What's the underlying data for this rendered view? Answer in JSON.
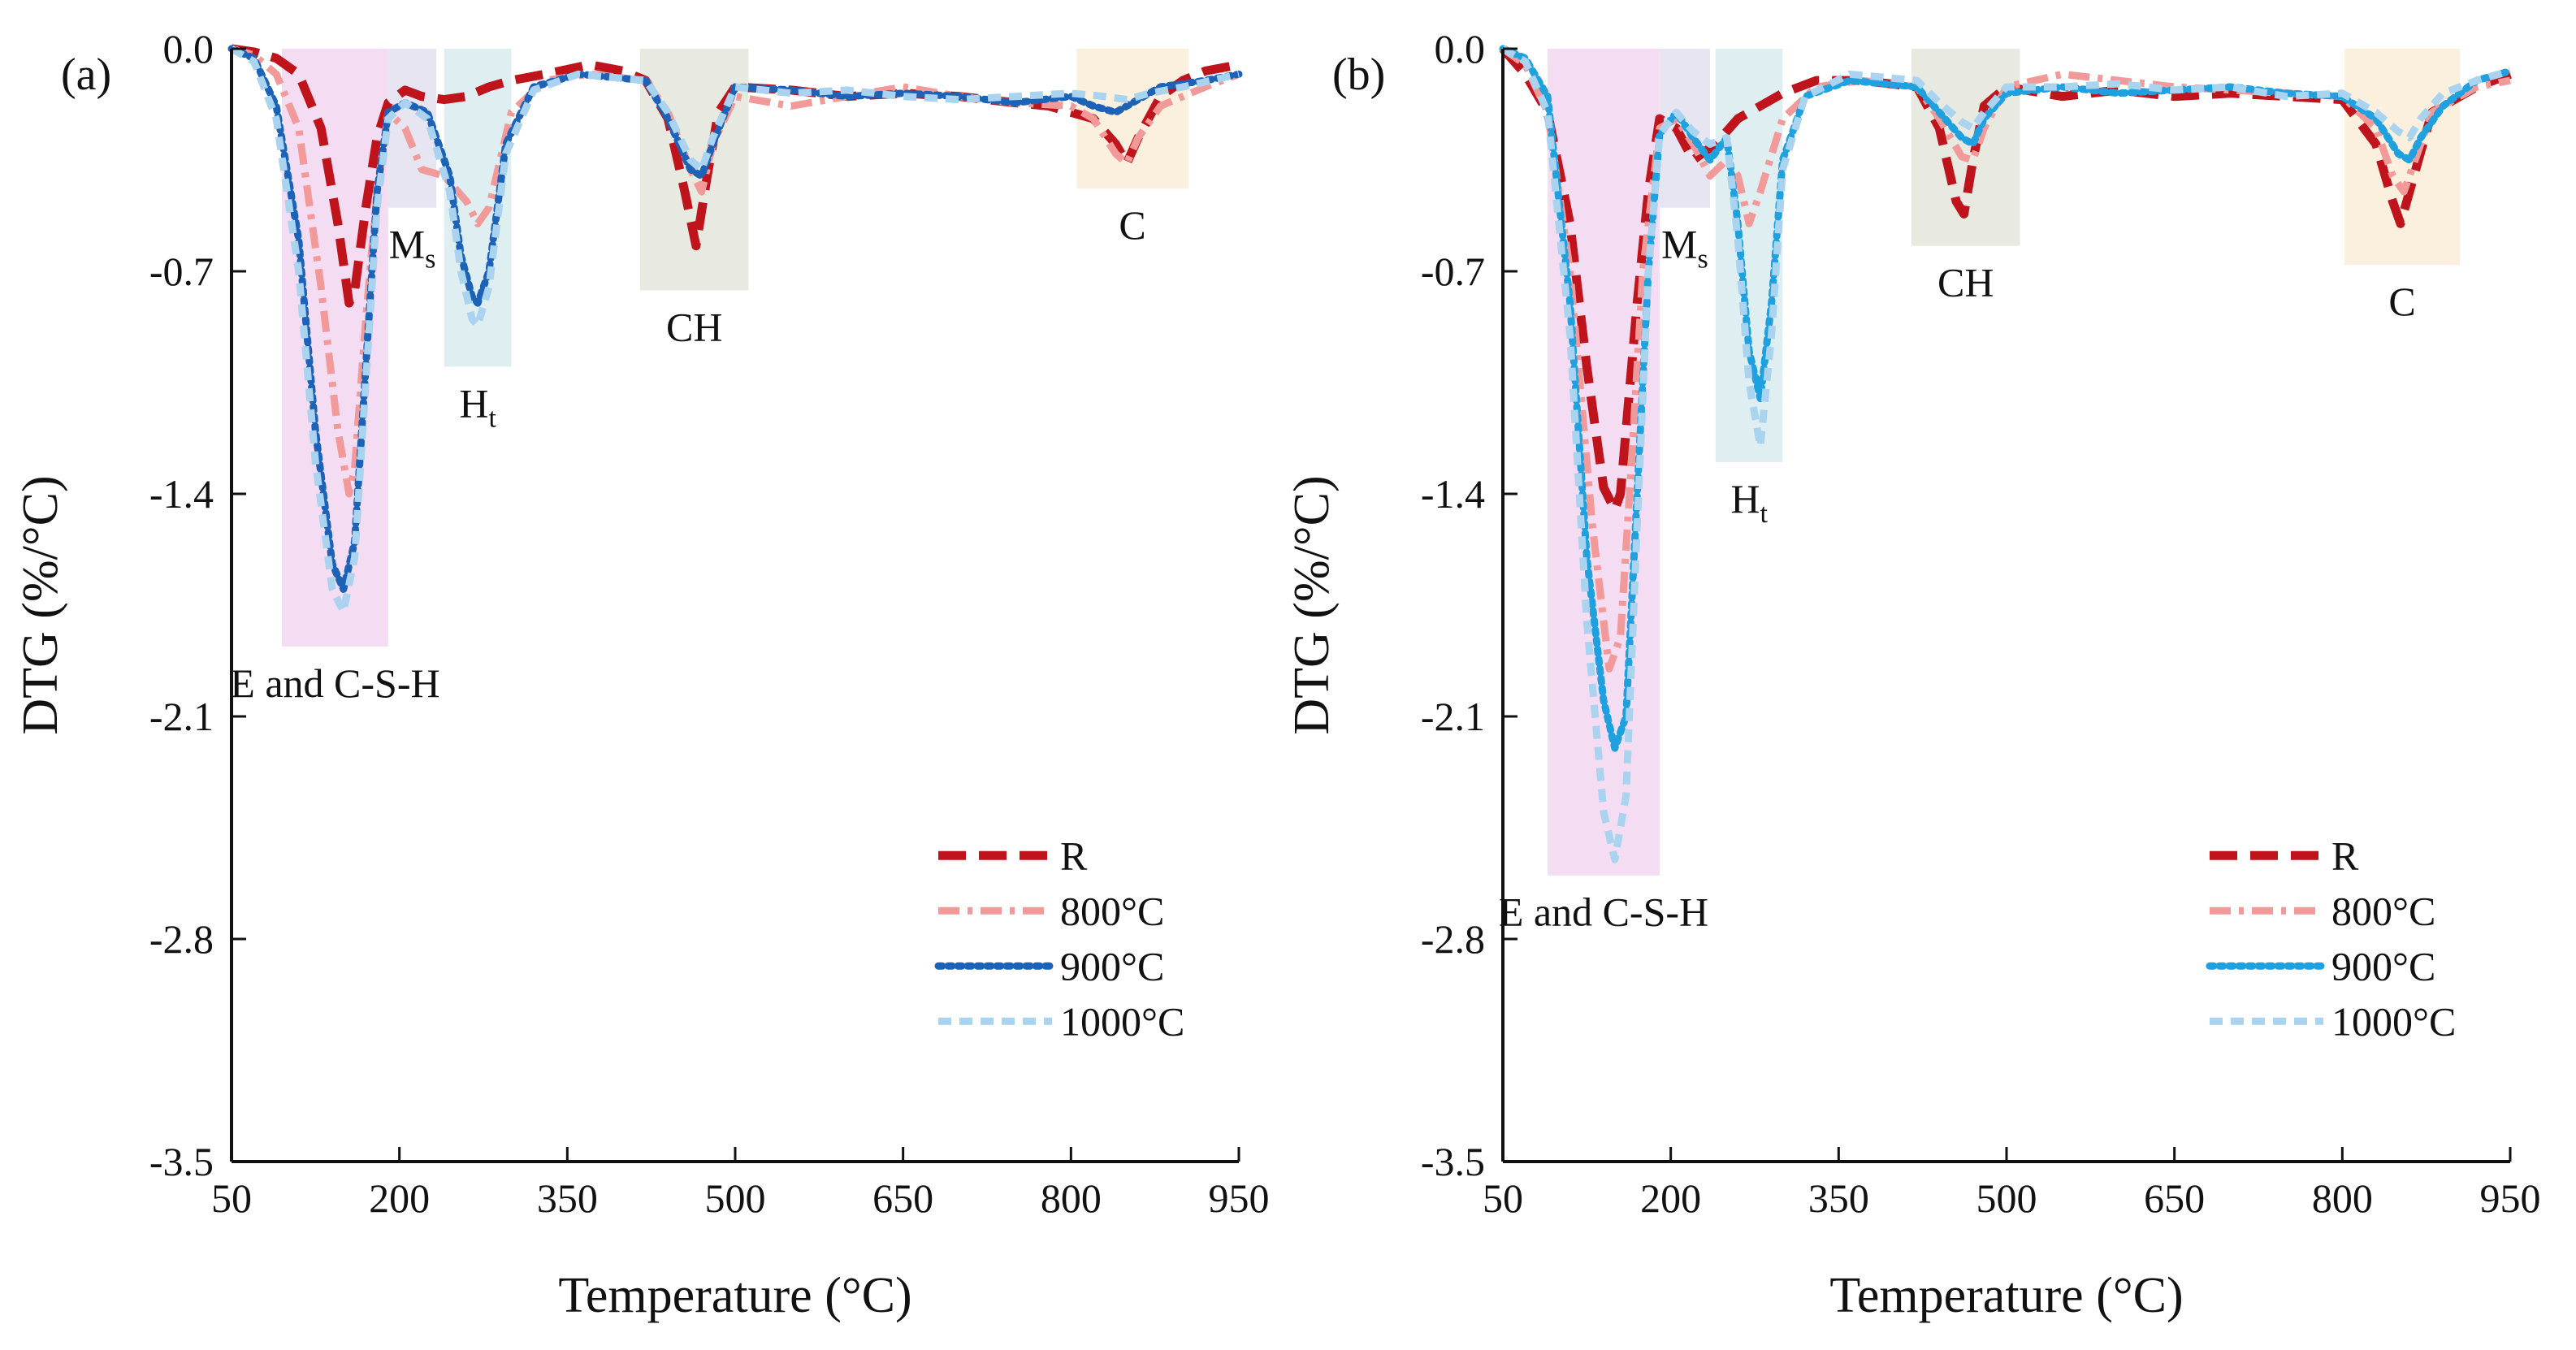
{
  "figure": {
    "colors": {
      "R": "#c0141d",
      "800": "#f29a9a",
      "900_a": "#1c63b8",
      "900_b": "#1fa1e0",
      "1000": "#a9d3ef",
      "band_E": "#f3d9f1",
      "band_Ms": "#e3e2ef",
      "band_Ht": "#dcecef",
      "band_CH": "#e5e8df",
      "band_C": "#fbeeda",
      "axis": "#111111"
    }
  },
  "chart_data": [
    {
      "panel_label": "(a)",
      "type": "line",
      "xlabel": "Temperature (°C)",
      "ylabel": "DTG (%/°C)",
      "xlim": [
        50,
        950
      ],
      "ylim": [
        -3.5,
        0.0
      ],
      "xticks": [
        "50",
        "200",
        "350",
        "500",
        "650",
        "800",
        "950"
      ],
      "yticks": [
        "0.0",
        "-0.7",
        "-1.4",
        "-2.1",
        "-2.8",
        "-3.5"
      ],
      "bands": [
        {
          "label": "E and C-S-H",
          "main": "E and C-S-H",
          "sub": "",
          "x": [
            95,
            190
          ],
          "y": [
            0.0,
            -1.88
          ],
          "color": "band_E",
          "label_anchor": "bottom"
        },
        {
          "label": "Ms",
          "main": "M",
          "sub": "s",
          "x": [
            190,
            233
          ],
          "y": [
            0.0,
            -0.5
          ],
          "color": "band_Ms",
          "label_anchor": "bottom"
        },
        {
          "label": "Ht",
          "main": "H",
          "sub": "t",
          "x": [
            240,
            300
          ],
          "y": [
            0.0,
            -1.0
          ],
          "color": "band_Ht",
          "label_anchor": "bottom"
        },
        {
          "label": "CH",
          "main": "CH",
          "sub": "",
          "x": [
            415,
            512
          ],
          "y": [
            0.0,
            -0.76
          ],
          "color": "band_CH",
          "label_anchor": "bottom"
        },
        {
          "label": "C",
          "main": "C",
          "sub": "",
          "x": [
            805,
            905
          ],
          "y": [
            0.0,
            -0.44
          ],
          "color": "band_C",
          "label_anchor": "bottom"
        }
      ],
      "series": [
        {
          "name": "R",
          "dash": "long",
          "color": "R",
          "x": [
            50,
            70,
            90,
            110,
            130,
            145,
            155,
            160,
            170,
            180,
            190,
            205,
            220,
            240,
            260,
            280,
            300,
            330,
            370,
            400,
            420,
            440,
            455,
            465,
            475,
            485,
            500,
            550,
            600,
            650,
            700,
            750,
            780,
            800,
            820,
            840,
            850,
            860,
            880,
            900,
            920,
            950
          ],
          "y": [
            0,
            -0.01,
            -0.03,
            -0.08,
            -0.25,
            -0.55,
            -0.8,
            -0.76,
            -0.5,
            -0.28,
            -0.17,
            -0.13,
            -0.15,
            -0.16,
            -0.15,
            -0.12,
            -0.1,
            -0.08,
            -0.05,
            -0.07,
            -0.1,
            -0.22,
            -0.45,
            -0.62,
            -0.4,
            -0.2,
            -0.12,
            -0.13,
            -0.15,
            -0.14,
            -0.15,
            -0.17,
            -0.18,
            -0.2,
            -0.22,
            -0.3,
            -0.36,
            -0.28,
            -0.15,
            -0.1,
            -0.07,
            -0.05
          ]
        },
        {
          "name": "800°C",
          "dash": "dashdot",
          "color": "800",
          "x": [
            50,
            70,
            90,
            110,
            130,
            145,
            155,
            160,
            170,
            180,
            190,
            205,
            220,
            240,
            260,
            270,
            280,
            300,
            330,
            370,
            420,
            440,
            460,
            470,
            480,
            500,
            550,
            600,
            650,
            700,
            750,
            800,
            820,
            840,
            850,
            860,
            880,
            920,
            950
          ],
          "y": [
            0,
            -0.02,
            -0.08,
            -0.25,
            -0.75,
            -1.2,
            -1.4,
            -1.32,
            -0.85,
            -0.45,
            -0.2,
            -0.25,
            -0.38,
            -0.4,
            -0.48,
            -0.55,
            -0.5,
            -0.2,
            -0.1,
            -0.08,
            -0.1,
            -0.2,
            -0.38,
            -0.45,
            -0.3,
            -0.15,
            -0.18,
            -0.15,
            -0.12,
            -0.15,
            -0.17,
            -0.18,
            -0.22,
            -0.33,
            -0.36,
            -0.28,
            -0.18,
            -0.12,
            -0.08
          ]
        },
        {
          "name": "900°C",
          "dash": "dot",
          "color": "900_a",
          "x": [
            50,
            70,
            90,
            110,
            125,
            140,
            150,
            160,
            170,
            180,
            190,
            205,
            225,
            245,
            255,
            265,
            270,
            280,
            295,
            320,
            360,
            420,
            440,
            460,
            470,
            480,
            500,
            550,
            600,
            650,
            700,
            750,
            800,
            820,
            840,
            850,
            860,
            880,
            920,
            950
          ],
          "y": [
            0,
            -0.03,
            -0.18,
            -0.6,
            -1.2,
            -1.62,
            -1.7,
            -1.55,
            -1.0,
            -0.45,
            -0.2,
            -0.17,
            -0.2,
            -0.4,
            -0.65,
            -0.78,
            -0.8,
            -0.7,
            -0.3,
            -0.12,
            -0.08,
            -0.1,
            -0.22,
            -0.38,
            -0.4,
            -0.3,
            -0.12,
            -0.13,
            -0.15,
            -0.14,
            -0.15,
            -0.17,
            -0.15,
            -0.18,
            -0.2,
            -0.18,
            -0.16,
            -0.12,
            -0.1,
            -0.08
          ]
        },
        {
          "name": "1000°C",
          "dash": "dash",
          "color": "1000",
          "x": [
            50,
            70,
            90,
            110,
            125,
            140,
            150,
            160,
            170,
            180,
            190,
            205,
            225,
            245,
            255,
            265,
            270,
            280,
            295,
            320,
            360,
            420,
            440,
            460,
            470,
            480,
            500,
            550,
            600,
            650,
            700,
            750,
            800,
            830,
            850,
            870,
            900,
            950
          ],
          "y": [
            0,
            -0.04,
            -0.22,
            -0.7,
            -1.3,
            -1.7,
            -1.77,
            -1.6,
            -1.05,
            -0.5,
            -0.22,
            -0.17,
            -0.22,
            -0.45,
            -0.7,
            -0.85,
            -0.87,
            -0.75,
            -0.33,
            -0.13,
            -0.08,
            -0.1,
            -0.2,
            -0.35,
            -0.38,
            -0.28,
            -0.12,
            -0.14,
            -0.13,
            -0.15,
            -0.16,
            -0.15,
            -0.14,
            -0.15,
            -0.16,
            -0.14,
            -0.12,
            -0.08
          ]
        }
      ],
      "legend": {
        "position": "bottom-right",
        "entries": [
          "R",
          "800°C",
          "900°C",
          "1000°C"
        ]
      }
    },
    {
      "panel_label": "(b)",
      "type": "line",
      "xlabel": "Temperature (°C)",
      "ylabel": "DTG (%/°C)",
      "xlim": [
        50,
        950
      ],
      "ylim": [
        -3.5,
        0.0
      ],
      "xticks": [
        "50",
        "200",
        "350",
        "500",
        "650",
        "800",
        "950"
      ],
      "yticks": [
        "0.0",
        "-0.7",
        "-1.4",
        "-2.1",
        "-2.8",
        "-3.5"
      ],
      "bands": [
        {
          "label": "E and C-S-H",
          "main": "E and C-S-H",
          "sub": "",
          "x": [
            90,
            190
          ],
          "y": [
            0.0,
            -2.6
          ],
          "color": "band_E",
          "label_anchor": "bottom"
        },
        {
          "label": "Ms",
          "main": "M",
          "sub": "s",
          "x": [
            190,
            235
          ],
          "y": [
            0.0,
            -0.5
          ],
          "color": "band_Ms",
          "label_anchor": "bottom"
        },
        {
          "label": "Ht",
          "main": "H",
          "sub": "t",
          "x": [
            240,
            300
          ],
          "y": [
            0.0,
            -1.3
          ],
          "color": "band_Ht",
          "label_anchor": "bottom"
        },
        {
          "label": "CH",
          "main": "CH",
          "sub": "",
          "x": [
            415,
            512
          ],
          "y": [
            0.0,
            -0.62
          ],
          "color": "band_CH",
          "label_anchor": "bottom"
        },
        {
          "label": "C",
          "main": "C",
          "sub": "",
          "x": [
            802,
            905
          ],
          "y": [
            0.0,
            -0.68
          ],
          "color": "band_C",
          "label_anchor": "bottom"
        }
      ],
      "series": [
        {
          "name": "R",
          "dash": "long",
          "color": "R",
          "x": [
            50,
            70,
            90,
            110,
            125,
            140,
            150,
            155,
            160,
            170,
            180,
            190,
            205,
            220,
            240,
            260,
            280,
            300,
            330,
            370,
            420,
            440,
            455,
            462,
            470,
            480,
            500,
            550,
            600,
            650,
            700,
            750,
            800,
            830,
            845,
            852,
            860,
            880,
            920,
            950
          ],
          "y": [
            0,
            -0.08,
            -0.2,
            -0.55,
            -1.0,
            -1.38,
            -1.45,
            -1.4,
            -1.2,
            -0.8,
            -0.45,
            -0.22,
            -0.25,
            -0.35,
            -0.3,
            -0.22,
            -0.18,
            -0.14,
            -0.1,
            -0.1,
            -0.12,
            -0.25,
            -0.48,
            -0.52,
            -0.35,
            -0.18,
            -0.12,
            -0.15,
            -0.13,
            -0.15,
            -0.14,
            -0.15,
            -0.16,
            -0.3,
            -0.48,
            -0.55,
            -0.45,
            -0.2,
            -0.12,
            -0.08
          ]
        },
        {
          "name": "800°C",
          "dash": "dashdot",
          "color": "800",
          "x": [
            50,
            70,
            90,
            110,
            130,
            145,
            155,
            165,
            175,
            190,
            205,
            220,
            235,
            250,
            260,
            270,
            280,
            300,
            330,
            370,
            420,
            440,
            460,
            470,
            480,
            500,
            550,
            600,
            650,
            700,
            750,
            800,
            830,
            845,
            855,
            865,
            880,
            920,
            950
          ],
          "y": [
            0,
            -0.05,
            -0.2,
            -0.7,
            -1.5,
            -1.95,
            -1.85,
            -1.3,
            -0.7,
            -0.25,
            -0.22,
            -0.3,
            -0.4,
            -0.35,
            -0.4,
            -0.55,
            -0.45,
            -0.22,
            -0.12,
            -0.1,
            -0.12,
            -0.22,
            -0.34,
            -0.35,
            -0.25,
            -0.12,
            -0.08,
            -0.1,
            -0.12,
            -0.13,
            -0.14,
            -0.15,
            -0.25,
            -0.4,
            -0.45,
            -0.35,
            -0.2,
            -0.12,
            -0.1
          ]
        },
        {
          "name": "900°C",
          "dash": "dot",
          "color": "900_b",
          "x": [
            50,
            70,
            90,
            110,
            125,
            140,
            150,
            160,
            170,
            180,
            190,
            205,
            220,
            235,
            250,
            260,
            270,
            280,
            290,
            300,
            320,
            360,
            420,
            440,
            460,
            470,
            480,
            500,
            550,
            600,
            650,
            700,
            750,
            800,
            830,
            850,
            860,
            870,
            890,
            920,
            950
          ],
          "y": [
            0,
            -0.03,
            -0.15,
            -0.8,
            -1.6,
            -2.05,
            -2.2,
            -2.1,
            -1.4,
            -0.7,
            -0.27,
            -0.2,
            -0.28,
            -0.35,
            -0.28,
            -0.55,
            -0.95,
            -1.1,
            -0.8,
            -0.35,
            -0.15,
            -0.1,
            -0.12,
            -0.2,
            -0.28,
            -0.3,
            -0.22,
            -0.14,
            -0.12,
            -0.14,
            -0.13,
            -0.12,
            -0.14,
            -0.15,
            -0.22,
            -0.33,
            -0.35,
            -0.28,
            -0.18,
            -0.1,
            -0.07
          ]
        },
        {
          "name": "1000°C",
          "dash": "dash",
          "color": "1000",
          "x": [
            50,
            70,
            90,
            110,
            125,
            140,
            150,
            160,
            170,
            180,
            190,
            205,
            220,
            235,
            250,
            260,
            270,
            280,
            290,
            300,
            320,
            360,
            420,
            440,
            460,
            470,
            480,
            500,
            550,
            600,
            650,
            700,
            750,
            800,
            830,
            850,
            860,
            870,
            890,
            920,
            950
          ],
          "y": [
            0,
            -0.04,
            -0.2,
            -0.9,
            -1.8,
            -2.4,
            -2.55,
            -2.35,
            -1.5,
            -0.7,
            -0.27,
            -0.2,
            -0.26,
            -0.3,
            -0.28,
            -0.6,
            -1.05,
            -1.25,
            -0.9,
            -0.38,
            -0.15,
            -0.08,
            -0.1,
            -0.17,
            -0.23,
            -0.25,
            -0.2,
            -0.12,
            -0.12,
            -0.11,
            -0.13,
            -0.12,
            -0.15,
            -0.14,
            -0.2,
            -0.26,
            -0.28,
            -0.22,
            -0.14,
            -0.1,
            -0.07
          ]
        }
      ],
      "legend": {
        "position": "bottom-right",
        "entries": [
          "R",
          "800°C",
          "900°C",
          "1000°C"
        ]
      }
    }
  ]
}
